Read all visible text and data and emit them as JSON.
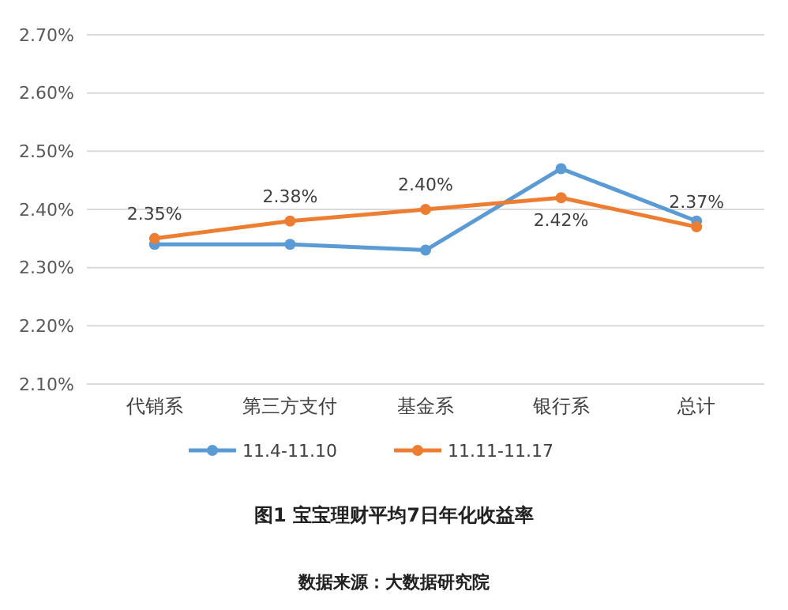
{
  "chart_data": {
    "type": "line",
    "title": "图1 宝宝理财平均7日年化收益率",
    "annotations": [
      "数据来源：大数据研究院"
    ],
    "categories": [
      "代销系",
      "第三方支付",
      "基金系",
      "银行系",
      "总计"
    ],
    "series": [
      {
        "name": "11.4-11.10",
        "color": "#5b9bd5",
        "values": [
          2.34,
          2.34,
          2.33,
          2.47,
          2.38
        ]
      },
      {
        "name": "11.11-11.17",
        "color": "#ed7d31",
        "values": [
          2.35,
          2.38,
          2.4,
          2.42,
          2.37
        ],
        "value_labels": [
          "2.35%",
          "2.38%",
          "2.40%",
          "2.42%",
          "2.37%"
        ]
      }
    ],
    "ylim": [
      2.1,
      2.7
    ],
    "yticks": [
      {
        "value": 2.1,
        "label": "2.10%"
      },
      {
        "value": 2.2,
        "label": "2.20%"
      },
      {
        "value": 2.3,
        "label": "2.30%"
      },
      {
        "value": 2.4,
        "label": "2.40%"
      },
      {
        "value": 2.5,
        "label": "2.50%"
      },
      {
        "value": 2.6,
        "label": "2.60%"
      },
      {
        "value": 2.7,
        "label": "2.70%"
      }
    ],
    "grid": "y",
    "legend": "bottom",
    "marker": "circle",
    "line_style": "solid"
  }
}
